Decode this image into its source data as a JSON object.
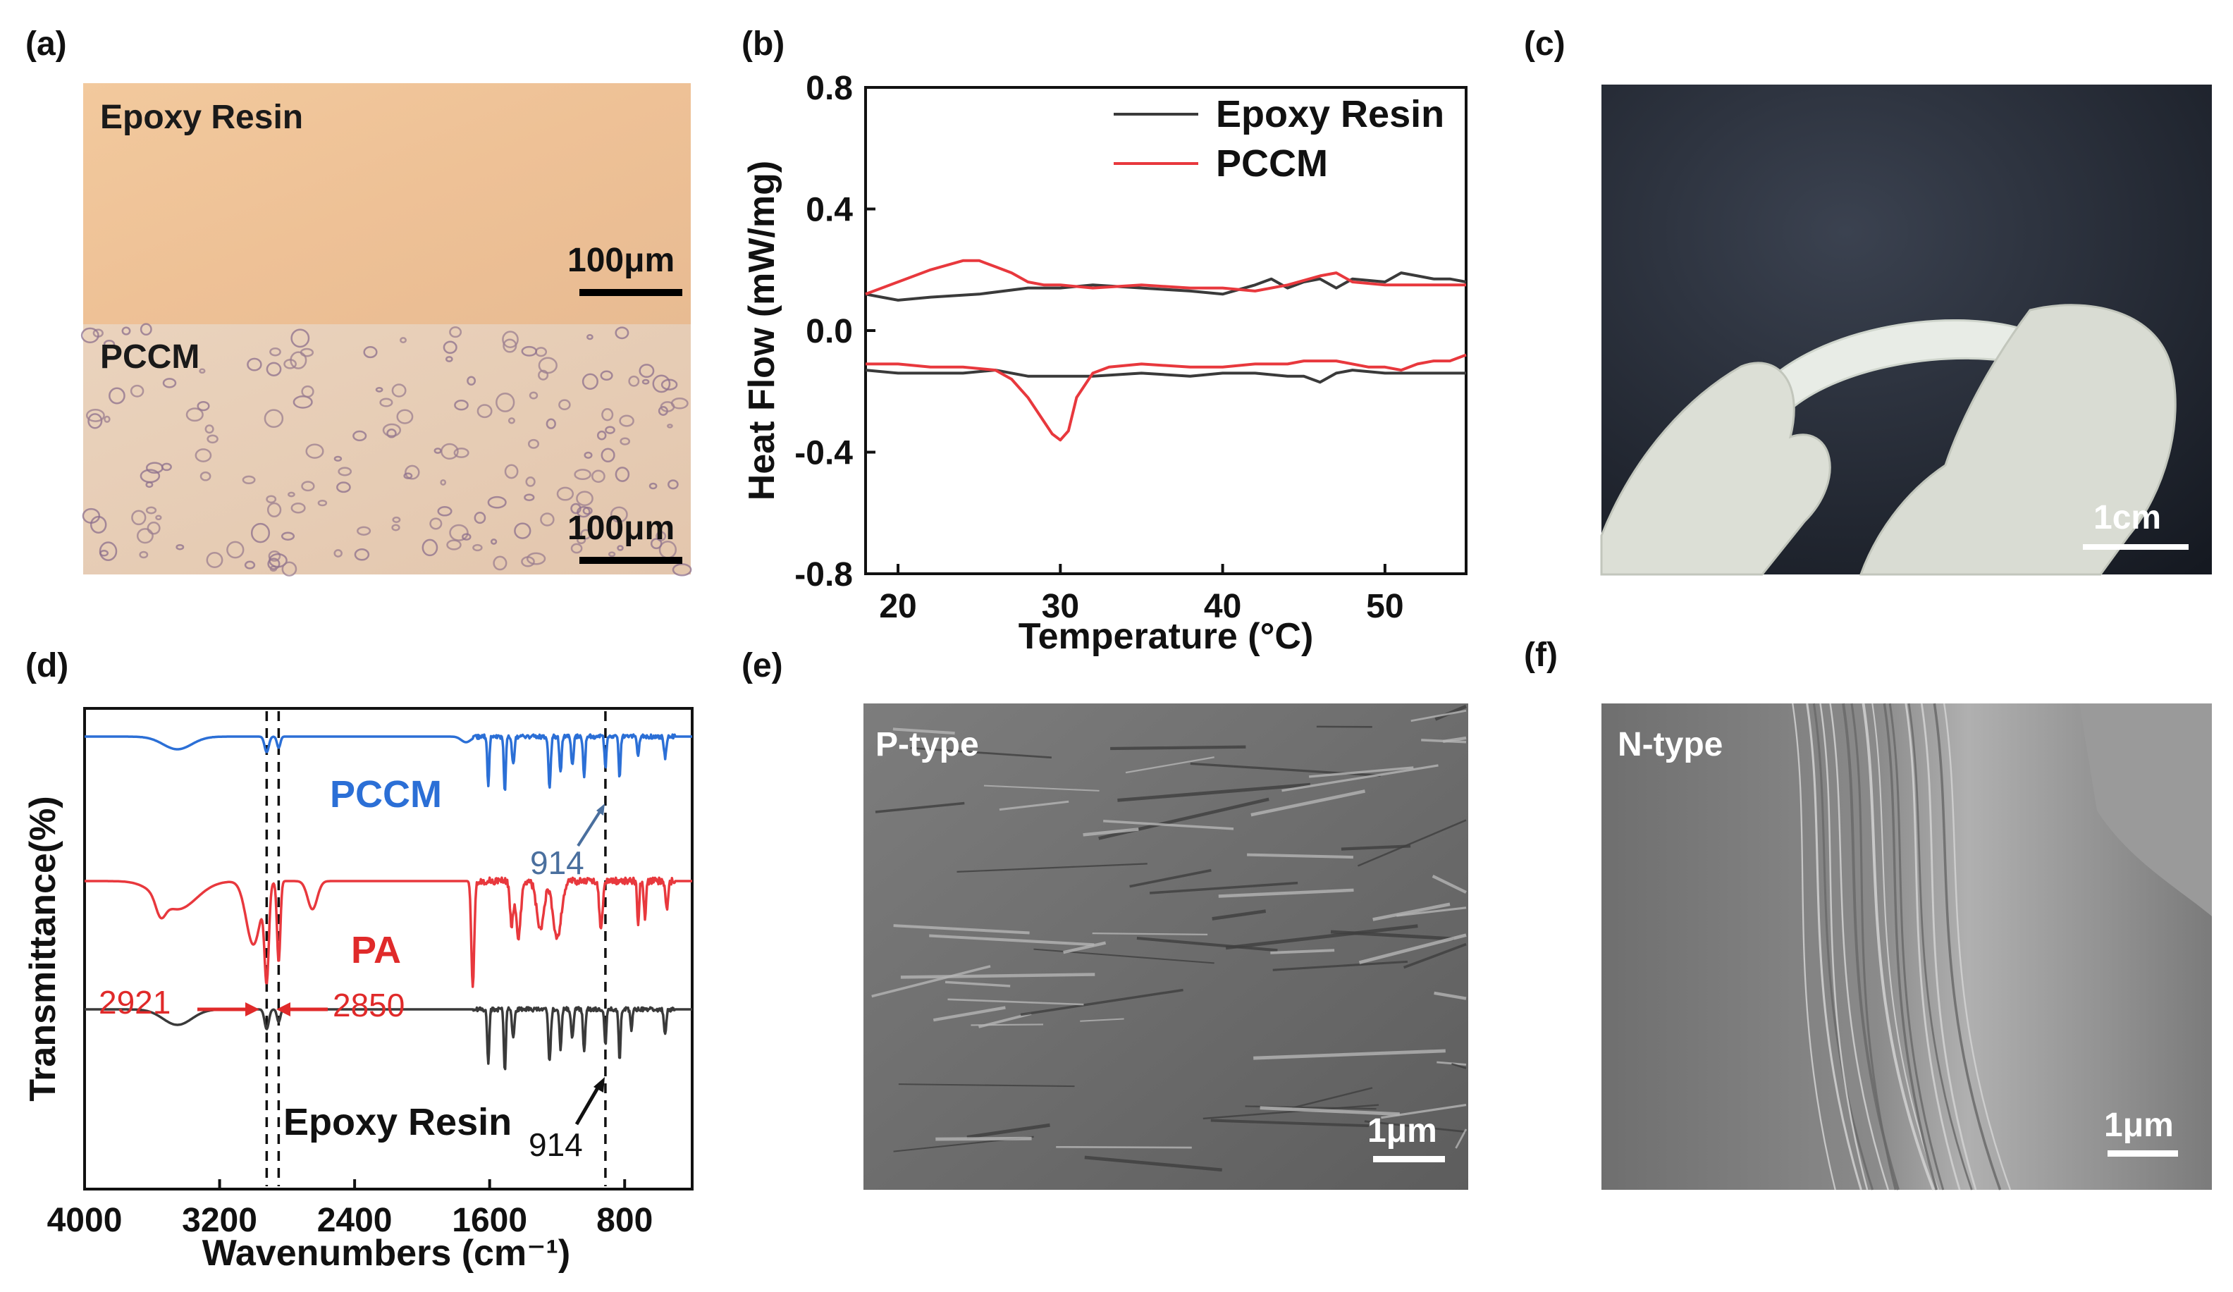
{
  "panels": {
    "a": {
      "label": "(a)",
      "top_text": "Epoxy Resin",
      "bottom_text": "PCCM",
      "scale_top": "100μm",
      "scale_bottom": "100μm"
    },
    "c": {
      "label": "(c)",
      "scale": "1cm"
    },
    "e": {
      "label": "(e)",
      "text": "P-type",
      "scale": "1μm"
    },
    "f": {
      "label": "(f)",
      "text": "N-type",
      "scale": "1μm"
    }
  },
  "chart_data": [
    {
      "panel": "(b)",
      "type": "line",
      "xlabel": "Temperature (°C)",
      "ylabel": "Heat Flow (mW/mg)",
      "xlim": [
        18,
        55
      ],
      "ylim": [
        -0.8,
        0.8
      ],
      "xticks": [
        20,
        30,
        40,
        50
      ],
      "yticks": [
        0.8,
        0.4,
        0.0,
        -0.4,
        -0.8
      ],
      "ytick_labels": [
        "0.8",
        "0.4",
        "0.0",
        "-0.4",
        "-0.8"
      ],
      "legend": "top-right",
      "series": [
        {
          "name": "Epoxy Resin",
          "color": "#3a3a3a",
          "segments": [
            {
              "x": [
                18,
                19,
                20,
                22,
                25,
                28,
                30,
                32,
                35,
                38,
                40,
                42,
                43,
                44,
                45,
                46,
                47,
                48,
                50,
                51,
                52,
                53,
                54,
                55
              ],
              "y": [
                0.12,
                0.11,
                0.1,
                0.11,
                0.12,
                0.14,
                0.14,
                0.15,
                0.14,
                0.13,
                0.12,
                0.15,
                0.17,
                0.14,
                0.16,
                0.17,
                0.14,
                0.17,
                0.16,
                0.19,
                0.18,
                0.17,
                0.17,
                0.16
              ]
            },
            {
              "x": [
                18,
                20,
                24,
                26,
                28,
                30,
                32,
                35,
                38,
                40,
                42,
                44,
                45,
                46,
                47,
                48,
                50,
                52,
                55
              ],
              "y": [
                -0.13,
                -0.14,
                -0.14,
                -0.13,
                -0.15,
                -0.15,
                -0.15,
                -0.14,
                -0.15,
                -0.14,
                -0.14,
                -0.15,
                -0.15,
                -0.17,
                -0.14,
                -0.13,
                -0.14,
                -0.14,
                -0.14
              ]
            }
          ]
        },
        {
          "name": "PCCM",
          "color": "#e8383d",
          "segments": [
            {
              "x": [
                18,
                20,
                22,
                24,
                25,
                26,
                27,
                28,
                29,
                30,
                32,
                35,
                38,
                40,
                42,
                44,
                46,
                47,
                48,
                50,
                52,
                55
              ],
              "y": [
                0.12,
                0.16,
                0.2,
                0.23,
                0.23,
                0.21,
                0.19,
                0.16,
                0.15,
                0.15,
                0.14,
                0.15,
                0.14,
                0.14,
                0.13,
                0.15,
                0.18,
                0.19,
                0.16,
                0.15,
                0.15,
                0.15
              ]
            },
            {
              "x": [
                18,
                20,
                22,
                24,
                26,
                27,
                28,
                29,
                29.5,
                30,
                30.5,
                31,
                32,
                33,
                35,
                38,
                40,
                42,
                44,
                45,
                47,
                49,
                50,
                51,
                52,
                53,
                54,
                55
              ],
              "y": [
                -0.11,
                -0.11,
                -0.12,
                -0.12,
                -0.13,
                -0.16,
                -0.22,
                -0.3,
                -0.34,
                -0.36,
                -0.33,
                -0.22,
                -0.14,
                -0.12,
                -0.11,
                -0.12,
                -0.12,
                -0.11,
                -0.11,
                -0.1,
                -0.1,
                -0.12,
                -0.12,
                -0.13,
                -0.11,
                -0.1,
                -0.1,
                -0.08
              ]
            }
          ]
        }
      ]
    },
    {
      "panel": "(d)",
      "type": "line",
      "xlabel": "Wavenumbers (cm⁻¹)",
      "ylabel": "Transmittance(%)",
      "xlim": [
        4000,
        400
      ],
      "x_reversed": true,
      "xticks": [
        4000,
        3200,
        2400,
        1600,
        800
      ],
      "y_ticks_shown": false,
      "dashed_lines_x": [
        2921,
        2850,
        914
      ],
      "series": [
        {
          "name": "PCCM",
          "color": "#2b6fd6"
        },
        {
          "name": "PA",
          "color": "#e8383d"
        },
        {
          "name": "Epoxy Resin",
          "color": "#3a3a3a"
        }
      ],
      "annotations": [
        {
          "text": "914",
          "color": "#4a6f9e"
        },
        {
          "text": "2921",
          "color": "#e02a2a"
        },
        {
          "text": "2850",
          "color": "#e02a2a"
        },
        {
          "text": "914",
          "color": "#111111"
        }
      ]
    }
  ]
}
